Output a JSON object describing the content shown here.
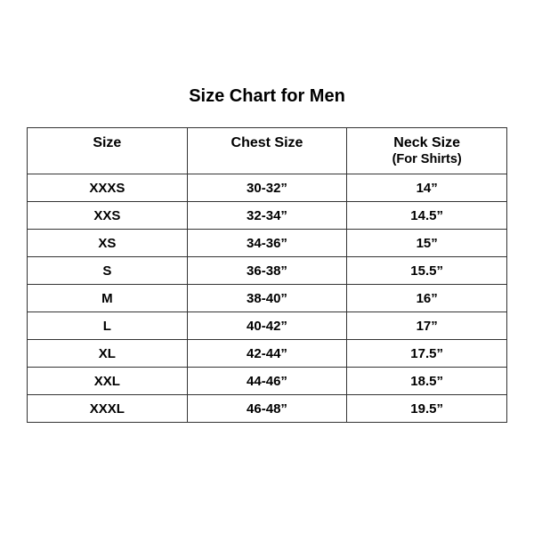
{
  "title": "Size Chart for Men",
  "headers": [
    {
      "label": "Size",
      "sub": ""
    },
    {
      "label": "Chest Size",
      "sub": ""
    },
    {
      "label": "Neck Size",
      "sub": "(For Shirts)"
    }
  ],
  "rows": [
    [
      "XXXS",
      "30-32”",
      "14”"
    ],
    [
      "XXS",
      "32-34”",
      "14.5”"
    ],
    [
      "XS",
      "34-36”",
      "15”"
    ],
    [
      "S",
      "36-38”",
      "15.5”"
    ],
    [
      "M",
      "38-40”",
      "16”"
    ],
    [
      "L",
      "40-42”",
      "17”"
    ],
    [
      "XL",
      "42-44”",
      "17.5”"
    ],
    [
      "XXL",
      "44-46”",
      "18.5”"
    ],
    [
      "XXXL",
      "46-48”",
      "19.5”"
    ]
  ]
}
